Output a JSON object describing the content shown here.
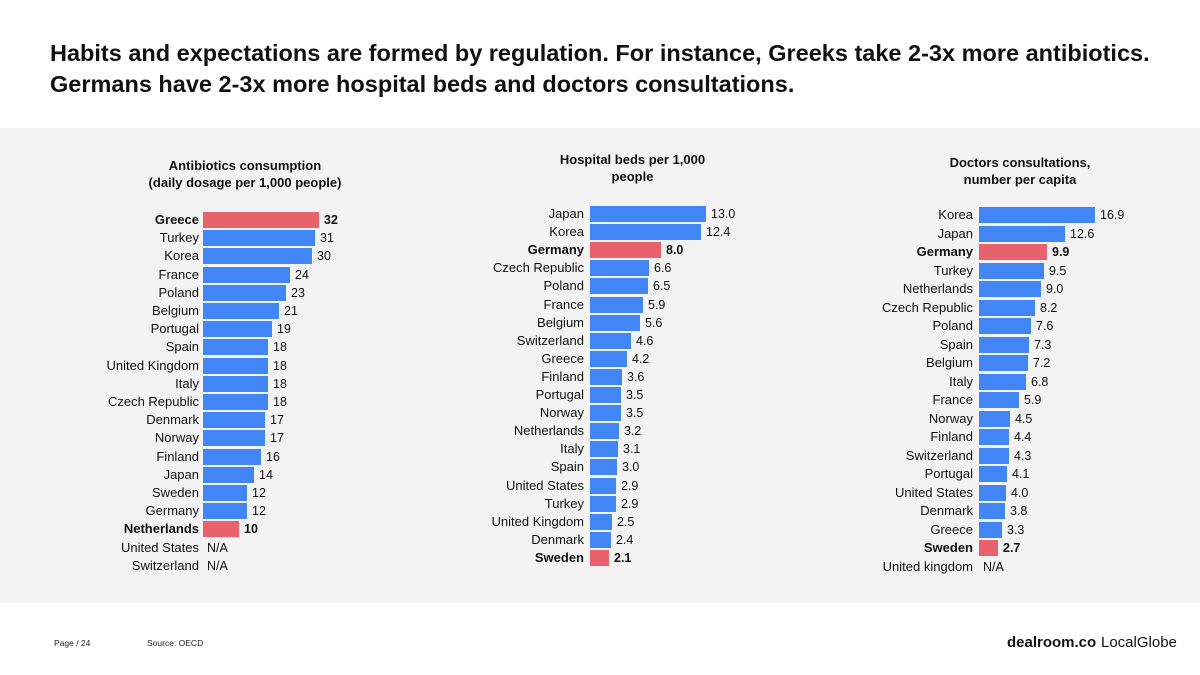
{
  "header": {
    "title": "Habits and expectations are formed by regulation. For instance, Greeks take 2-3x more antibiotics. Germans have 2-3x more hospital beds and doctors consultations."
  },
  "footer": {
    "page": "Page / 24",
    "source": "Source: OECD",
    "logo_primary": "dealroom.co",
    "logo_secondary": "LocalGlobe"
  },
  "colors": {
    "bar": "#4285f4",
    "highlight": "#e9616b",
    "panel": "#f3f3f3"
  },
  "chart_data": [
    {
      "type": "bar",
      "orientation": "horizontal",
      "title": "Antibiotics consumption\n(daily dosage per 1,000 people)",
      "xlim": [
        0,
        32
      ],
      "categories": [
        "Greece",
        "Turkey",
        "Korea",
        "France",
        "Poland",
        "Belgium",
        "Portugal",
        "Spain",
        "United Kingdom",
        "Italy",
        "Czech Republic",
        "Denmark",
        "Norway",
        "Finland",
        "Japan",
        "Sweden",
        "Germany",
        "Netherlands",
        "United States",
        "Switzerland"
      ],
      "values": [
        32,
        31,
        30,
        24,
        23,
        21,
        19,
        18,
        18,
        18,
        18,
        17,
        17,
        16,
        14,
        12,
        12,
        10,
        null,
        null
      ],
      "labels": [
        "32",
        "31",
        "30",
        "24",
        "23",
        "21",
        "19",
        "18",
        "18",
        "18",
        "18",
        "17",
        "17",
        "16",
        "14",
        "12",
        "12",
        "10",
        "N/A",
        "N/A"
      ],
      "highlight": [
        "Greece",
        "Netherlands"
      ]
    },
    {
      "type": "bar",
      "orientation": "horizontal",
      "title": "Hospital beds per 1,000\npeople",
      "xlim": [
        0,
        13
      ],
      "categories": [
        "Japan",
        "Korea",
        "Germany",
        "Czech Republic",
        "Poland",
        "France",
        "Belgium",
        "Switzerland",
        "Greece",
        "Finland",
        "Portugal",
        "Norway",
        "Netherlands",
        "Italy",
        "Spain",
        "United States",
        "Turkey",
        "United Kingdom",
        "Denmark",
        "Sweden"
      ],
      "values": [
        13.0,
        12.4,
        8.0,
        6.6,
        6.5,
        5.9,
        5.6,
        4.6,
        4.2,
        3.6,
        3.5,
        3.5,
        3.2,
        3.1,
        3.0,
        2.9,
        2.9,
        2.5,
        2.4,
        2.1
      ],
      "labels": [
        "13.0",
        "12.4",
        "8.0",
        "6.6",
        "6.5",
        "5.9",
        "5.6",
        "4.6",
        "4.2",
        "3.6",
        "3.5",
        "3.5",
        "3.2",
        "3.1",
        "3.0",
        "2.9",
        "2.9",
        "2.5",
        "2.4",
        "2.1"
      ],
      "highlight": [
        "Germany",
        "Sweden"
      ]
    },
    {
      "type": "bar",
      "orientation": "horizontal",
      "title": "Doctors consultations,\nnumber per capita",
      "xlim": [
        0,
        16.9
      ],
      "categories": [
        "Korea",
        "Japan",
        "Germany",
        "Turkey",
        "Netherlands",
        "Czech Republic",
        "Poland",
        "Spain",
        "Belgium",
        "Italy",
        "France",
        "Norway",
        "Finland",
        "Switzerland",
        "Portugal",
        "United States",
        "Denmark",
        "Greece",
        "Sweden",
        "United kingdom"
      ],
      "values": [
        16.9,
        12.6,
        9.9,
        9.5,
        9.0,
        8.2,
        7.6,
        7.3,
        7.2,
        6.8,
        5.9,
        4.5,
        4.4,
        4.3,
        4.1,
        4.0,
        3.8,
        3.3,
        2.7,
        null
      ],
      "labels": [
        "16.9",
        "12.6",
        "9.9",
        "9.5",
        "9.0",
        "8.2",
        "7.6",
        "7.3",
        "7.2",
        "6.8",
        "5.9",
        "4.5",
        "4.4",
        "4.3",
        "4.1",
        "4.0",
        "3.8",
        "3.3",
        "2.7",
        "N/A"
      ],
      "highlight": [
        "Germany",
        "Sweden"
      ]
    }
  ]
}
